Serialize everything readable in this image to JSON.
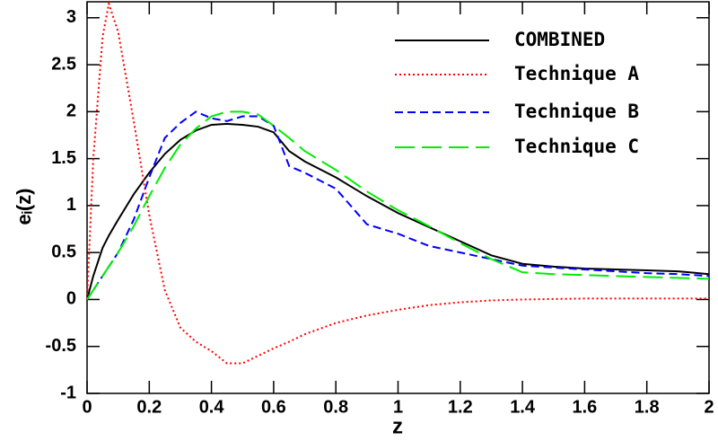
{
  "chart_data": {
    "type": "line",
    "x_label": "z",
    "y_label": "eᵢ(z)",
    "x": [
      0,
      0.02,
      0.05,
      0.07,
      0.1,
      0.15,
      0.2,
      0.25,
      0.3,
      0.35,
      0.4,
      0.45,
      0.5,
      0.55,
      0.6,
      0.65,
      0.7,
      0.8,
      0.9,
      1.0,
      1.1,
      1.2,
      1.3,
      1.4,
      1.5,
      1.6,
      1.7,
      1.8,
      1.9,
      2.0
    ],
    "series": [
      {
        "name": "COMBINED",
        "color": "#000000",
        "line_style": "solid",
        "values": [
          0,
          0.25,
          0.55,
          0.68,
          0.85,
          1.12,
          1.35,
          1.55,
          1.7,
          1.8,
          1.86,
          1.87,
          1.86,
          1.84,
          1.78,
          1.58,
          1.47,
          1.3,
          1.1,
          0.92,
          0.77,
          0.62,
          0.47,
          0.38,
          0.35,
          0.33,
          0.32,
          0.31,
          0.3,
          0.27
        ]
      },
      {
        "name": "Technique A",
        "color": "#ff0000",
        "line_style": "dotted",
        "values": [
          0,
          1.5,
          2.8,
          3.15,
          2.85,
          1.9,
          0.9,
          0.1,
          -0.3,
          -0.45,
          -0.55,
          -0.68,
          -0.68,
          -0.6,
          -0.52,
          -0.45,
          -0.37,
          -0.25,
          -0.17,
          -0.11,
          -0.06,
          -0.03,
          -0.01,
          0,
          0.005,
          0.01,
          0.01,
          0.01,
          0.01,
          0.01
        ]
      },
      {
        "name": "Technique B",
        "color": "#0000ff",
        "line_style": "dashed",
        "values": [
          0,
          0.1,
          0.25,
          0.35,
          0.5,
          0.85,
          1.3,
          1.72,
          1.88,
          2.0,
          1.93,
          1.9,
          1.95,
          1.95,
          1.85,
          1.42,
          1.35,
          1.18,
          0.8,
          0.7,
          0.57,
          0.5,
          0.43,
          0.36,
          0.34,
          0.32,
          0.3,
          0.28,
          0.27,
          0.25
        ]
      },
      {
        "name": "Technique C",
        "color": "#00ee00",
        "line_style": "longdash",
        "values": [
          0,
          0.1,
          0.25,
          0.35,
          0.5,
          0.78,
          1.1,
          1.4,
          1.65,
          1.82,
          1.95,
          2.0,
          2.0,
          1.97,
          1.85,
          1.72,
          1.58,
          1.38,
          1.15,
          0.95,
          0.78,
          0.6,
          0.43,
          0.29,
          0.27,
          0.26,
          0.25,
          0.24,
          0.23,
          0.22
        ]
      }
    ],
    "xlim": [
      0,
      2
    ],
    "ylim": [
      -1,
      3.17
    ],
    "xticks": [
      0,
      0.2,
      0.4,
      0.6,
      0.8,
      1,
      1.2,
      1.4,
      1.6,
      1.8,
      2
    ],
    "yticks": [
      -1,
      -0.5,
      0,
      0.5,
      1,
      1.5,
      2,
      2.5,
      3
    ],
    "legend": "upper right"
  }
}
